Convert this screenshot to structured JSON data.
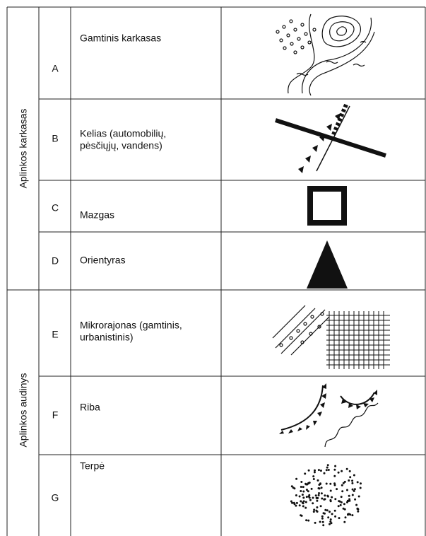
{
  "groups": [
    {
      "label": "Aplinkos karkasas",
      "rows": [
        {
          "code": "A",
          "name_lines": [
            "Gamtinis karkasas"
          ]
        },
        {
          "code": "B",
          "name_lines": [
            "Kelias (automobilių,",
            "pėsčiųjų, vandens)"
          ]
        },
        {
          "code": "C",
          "name_lines": [
            "Mazgas"
          ]
        },
        {
          "code": "D",
          "name_lines": [
            "Orientyras"
          ]
        }
      ]
    },
    {
      "label": "Aplinkos audinys",
      "rows": [
        {
          "code": "E",
          "name_lines": [
            "Mikrorajonas (gamtinis,",
            "urbanistinis)"
          ]
        },
        {
          "code": "F",
          "name_lines": [
            "Riba"
          ]
        },
        {
          "code": "G",
          "name_lines": [
            "Terpė"
          ]
        }
      ]
    }
  ]
}
